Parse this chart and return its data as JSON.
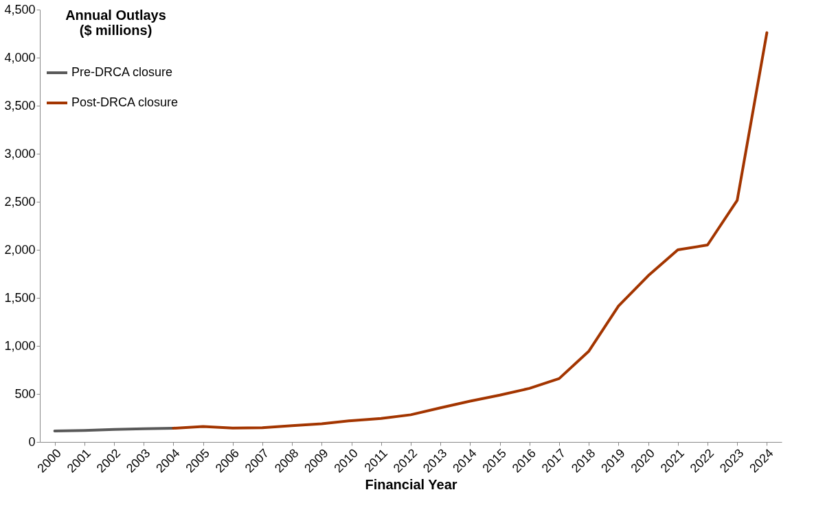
{
  "chart_data": {
    "type": "line",
    "ylabel": "Annual Outlays ($ millions)",
    "xlabel": "Financial Year",
    "categories": [
      "2000",
      "2001",
      "2002",
      "2003",
      "2004",
      "2005",
      "2006",
      "2007",
      "2008",
      "2009",
      "2010",
      "2011",
      "2012",
      "2013",
      "2014",
      "2015",
      "2016",
      "2017",
      "2018",
      "2019",
      "2020",
      "2021",
      "2022",
      "2023",
      "2024"
    ],
    "series": [
      {
        "name": "Pre-DRCA closure",
        "color": "#595959",
        "values": [
          115,
          120,
          130,
          138,
          143,
          null,
          null,
          null,
          null,
          null,
          null,
          null,
          null,
          null,
          null,
          null,
          null,
          null,
          null,
          null,
          null,
          null,
          null,
          null,
          null
        ]
      },
      {
        "name": "Post-DRCA closure",
        "color": "#a33500",
        "values": [
          null,
          null,
          null,
          null,
          143,
          160,
          145,
          148,
          170,
          190,
          222,
          245,
          283,
          355,
          425,
          487,
          558,
          660,
          945,
          1415,
          1730,
          2000,
          2050,
          2515,
          4260
        ]
      }
    ],
    "ylim": [
      0,
      4500
    ],
    "yticks": [
      {
        "value": 0,
        "label": "0"
      },
      {
        "value": 500,
        "label": "500"
      },
      {
        "value": 1000,
        "label": "1,000"
      },
      {
        "value": 1500,
        "label": "1,500"
      },
      {
        "value": 2000,
        "label": "2,000"
      },
      {
        "value": 2500,
        "label": "2,500"
      },
      {
        "value": 3000,
        "label": "3,000"
      },
      {
        "value": 3500,
        "label": "3,500"
      },
      {
        "value": 4000,
        "label": "4,000"
      },
      {
        "value": 4500,
        "label": "4,500"
      }
    ],
    "grid": false,
    "legend": "top left",
    "marker": "none",
    "line_style": "solid"
  }
}
